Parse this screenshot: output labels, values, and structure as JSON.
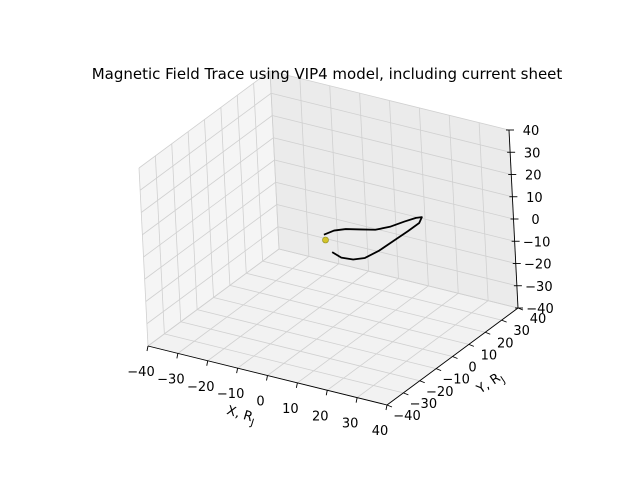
{
  "chart_data": {
    "type": "line3d",
    "title": "Magnetic Field Trace using VIP4 model, including current sheet",
    "xlabel": "X, R",
    "xlabel_sub": "J",
    "ylabel": "Y, R",
    "ylabel_sub": "J",
    "zlabel": "",
    "xlim": [
      -40,
      40
    ],
    "ylim": [
      -40,
      40
    ],
    "zlim": [
      -40,
      40
    ],
    "ticks": [
      -40,
      -30,
      -20,
      -10,
      0,
      10,
      20,
      30,
      40
    ],
    "tick_labels": [
      "−40",
      "−30",
      "−20",
      "−10",
      "0",
      "10",
      "20",
      "30",
      "40"
    ],
    "grid": true,
    "pane_color": "#f2f2f2",
    "grid_color": "#d0d0d0",
    "series": [
      {
        "color": "#000000",
        "points": [
          [
            -1.5,
            0.0,
            1.0
          ],
          [
            2,
            0,
            4
          ],
          [
            6,
            0,
            6
          ],
          [
            11,
            0,
            7.5
          ],
          [
            16,
            0,
            9
          ],
          [
            21,
            0,
            12
          ],
          [
            26,
            0,
            16
          ],
          [
            30,
            0,
            19
          ],
          [
            32,
            0,
            20
          ],
          [
            31,
            0,
            17
          ],
          [
            27,
            0,
            12
          ],
          [
            22,
            0,
            6
          ],
          [
            17,
            0,
            0
          ],
          [
            12,
            0,
            -5
          ],
          [
            8,
            0,
            -7
          ],
          [
            4,
            0,
            -7.5
          ],
          [
            1,
            0,
            -6
          ]
        ]
      }
    ],
    "planet": {
      "label": "",
      "color": "#d4c42a",
      "center": [
        0,
        0,
        0
      ]
    }
  }
}
